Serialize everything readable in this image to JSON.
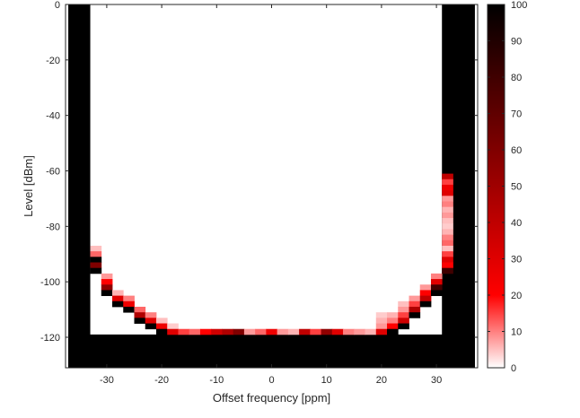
{
  "chart_data": {
    "type": "heatmap",
    "title": "",
    "xlabel": "Offset frequency [ppm]",
    "ylabel": "Level [dBm]",
    "xlim": [
      -37.5,
      37.5
    ],
    "ylim": [
      -131,
      0
    ],
    "xticks": [
      -30,
      -20,
      -10,
      0,
      10,
      20,
      30
    ],
    "yticks": [
      0,
      -20,
      -40,
      -60,
      -80,
      -100,
      -120
    ],
    "colorbar": {
      "ticks": [
        0,
        10,
        20,
        30,
        40,
        50,
        60,
        70,
        80,
        90,
        100
      ],
      "lim": [
        0,
        100
      ],
      "colormap": "white-red-black",
      "color_low": "#ffffff",
      "color_mid": "#ff0000",
      "color_high": "#000000"
    },
    "x_step": 2,
    "y_step": 2,
    "background_value": 0,
    "series_description": "percentage per offset frequency / level cell",
    "black_region": [
      {
        "x_from": -36,
        "x_to": -34,
        "y_from": 0,
        "y_to": -130,
        "value": 100
      },
      {
        "x_from": 32,
        "x_to": 36,
        "y_from": 0,
        "y_to": -130,
        "value": 100
      },
      {
        "x_from": -36,
        "x_to": 36,
        "y_from": -120,
        "y_to": -130,
        "value": 100
      }
    ],
    "boundary": [
      {
        "x": -32,
        "cells": [
          [
            -88,
            5
          ],
          [
            -90,
            12
          ],
          [
            -92,
            100
          ],
          [
            -94,
            60
          ],
          [
            -96,
            100
          ]
        ]
      },
      {
        "x": -30,
        "cells": [
          [
            -98,
            8
          ],
          [
            -100,
            20
          ],
          [
            -102,
            55
          ],
          [
            -104,
            100
          ]
        ]
      },
      {
        "x": -28,
        "cells": [
          [
            -104,
            6
          ],
          [
            -106,
            30
          ],
          [
            -108,
            100
          ]
        ]
      },
      {
        "x": -26,
        "cells": [
          [
            -106,
            10
          ],
          [
            -108,
            25
          ],
          [
            -110,
            100
          ]
        ]
      },
      {
        "x": -24,
        "cells": [
          [
            -110,
            12
          ],
          [
            -112,
            45
          ],
          [
            -114,
            100
          ]
        ]
      },
      {
        "x": -22,
        "cells": [
          [
            -112,
            10
          ],
          [
            -114,
            30
          ],
          [
            -116,
            100
          ]
        ]
      },
      {
        "x": -20,
        "cells": [
          [
            -114,
            5
          ],
          [
            -116,
            25
          ],
          [
            -118,
            100
          ]
        ]
      },
      {
        "x": -18,
        "cells": [
          [
            -116,
            4
          ],
          [
            -118,
            30
          ]
        ]
      },
      {
        "x": -16,
        "cells": [
          [
            -118,
            15
          ]
        ]
      },
      {
        "x": -14,
        "cells": [
          [
            -118,
            12
          ]
        ]
      },
      {
        "x": -12,
        "cells": [
          [
            -118,
            20
          ]
        ]
      },
      {
        "x": -10,
        "cells": [
          [
            -118,
            35
          ]
        ]
      },
      {
        "x": -8,
        "cells": [
          [
            -118,
            45
          ]
        ]
      },
      {
        "x": -6,
        "cells": [
          [
            -118,
            60
          ]
        ]
      },
      {
        "x": -4,
        "cells": [
          [
            -118,
            8
          ]
        ]
      },
      {
        "x": -2,
        "cells": [
          [
            -118,
            12
          ]
        ]
      },
      {
        "x": 0,
        "cells": [
          [
            -118,
            25
          ]
        ]
      },
      {
        "x": 2,
        "cells": [
          [
            -118,
            8
          ]
        ]
      },
      {
        "x": 4,
        "cells": [
          [
            -118,
            6
          ]
        ]
      },
      {
        "x": 6,
        "cells": [
          [
            -118,
            40
          ]
        ]
      },
      {
        "x": 8,
        "cells": [
          [
            -118,
            15
          ]
        ]
      },
      {
        "x": 10,
        "cells": [
          [
            -118,
            55
          ]
        ]
      },
      {
        "x": 12,
        "cells": [
          [
            -118,
            30
          ]
        ]
      },
      {
        "x": 14,
        "cells": [
          [
            -118,
            10
          ]
        ]
      },
      {
        "x": 16,
        "cells": [
          [
            -118,
            8
          ]
        ]
      },
      {
        "x": 18,
        "cells": [
          [
            -118,
            6
          ]
        ]
      },
      {
        "x": 20,
        "cells": [
          [
            -112,
            4
          ],
          [
            -114,
            6
          ],
          [
            -116,
            8
          ],
          [
            -118,
            30
          ]
        ]
      },
      {
        "x": 22,
        "cells": [
          [
            -112,
            6
          ],
          [
            -114,
            10
          ],
          [
            -116,
            20
          ],
          [
            -118,
            100
          ]
        ]
      },
      {
        "x": 24,
        "cells": [
          [
            -108,
            5
          ],
          [
            -110,
            8
          ],
          [
            -112,
            15
          ],
          [
            -114,
            35
          ],
          [
            -116,
            100
          ]
        ]
      },
      {
        "x": 26,
        "cells": [
          [
            -106,
            8
          ],
          [
            -108,
            15
          ],
          [
            -110,
            45
          ],
          [
            -112,
            100
          ]
        ]
      },
      {
        "x": 28,
        "cells": [
          [
            -102,
            8
          ],
          [
            -104,
            20
          ],
          [
            -106,
            40
          ],
          [
            -108,
            100
          ]
        ]
      },
      {
        "x": 30,
        "cells": [
          [
            -98,
            10
          ],
          [
            -100,
            30
          ],
          [
            -102,
            80
          ],
          [
            -104,
            100
          ]
        ]
      },
      {
        "x": 32,
        "cells": [
          [
            -62,
            40
          ],
          [
            -64,
            15
          ],
          [
            -66,
            25
          ],
          [
            -68,
            30
          ],
          [
            -70,
            8
          ],
          [
            -72,
            10
          ],
          [
            -74,
            6
          ],
          [
            -76,
            8
          ],
          [
            -78,
            5
          ],
          [
            -80,
            4
          ],
          [
            -82,
            6
          ],
          [
            -84,
            10
          ],
          [
            -86,
            12
          ],
          [
            -88,
            5
          ],
          [
            -90,
            15
          ],
          [
            -92,
            30
          ],
          [
            -94,
            20
          ],
          [
            -96,
            80
          ]
        ]
      }
    ]
  }
}
